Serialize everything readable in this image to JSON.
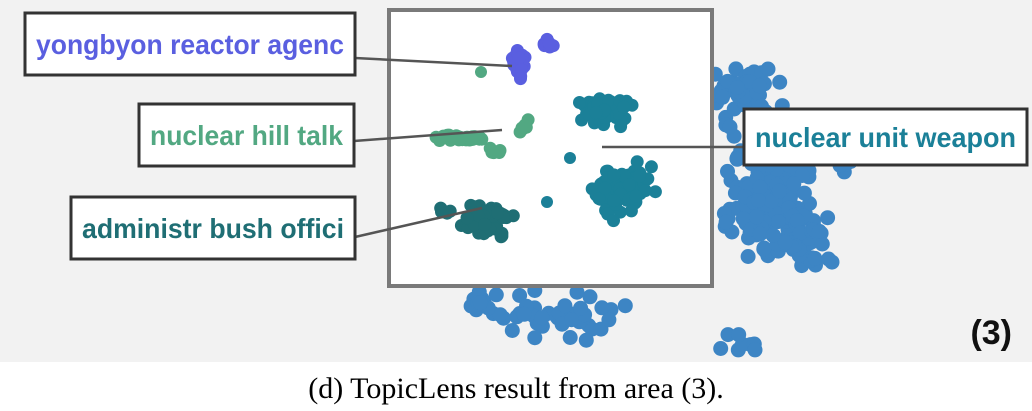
{
  "caption": "(d) TopicLens result from area (3).",
  "area_label": "(3)",
  "colors": {
    "panel_bg": "#f2f2f2",
    "background_points": "#3d85c4",
    "lens_border": "#7a7a7a",
    "label_border": "#333333",
    "leader_line": "#555555"
  },
  "chart_data": {
    "type": "scatter",
    "title": "",
    "xlabel": "",
    "ylabel": "",
    "grid": false,
    "clusters": [
      {
        "label": "yongbyon reactor agenc",
        "color": "#5a5fe0"
      },
      {
        "label": "nuclear hill talk",
        "color": "#52a882"
      },
      {
        "label": "administr bush offici",
        "color": "#1f6e74"
      },
      {
        "label": "nuclear unit weapon",
        "color": "#1b8098"
      }
    ]
  }
}
